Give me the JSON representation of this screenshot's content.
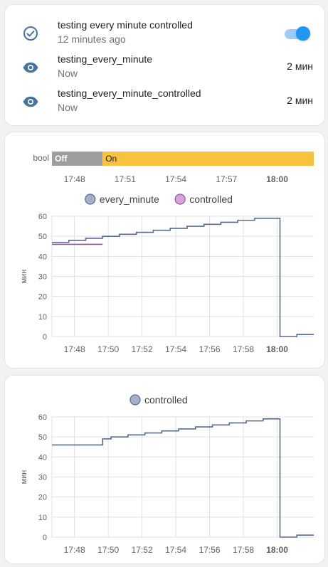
{
  "entities": [
    {
      "name": "testing every minute controlled",
      "secondary": "12 minutes ago",
      "icon": "check-circle-outline-icon",
      "toggle_on": true
    },
    {
      "name": "testing_every_minute",
      "secondary": "Now",
      "icon": "eye-icon",
      "value": "2 мин"
    },
    {
      "name": "testing_every_minute_controlled",
      "secondary": "Now",
      "icon": "eye-icon",
      "value": "2 мин"
    }
  ],
  "timeline": {
    "label": "bool",
    "segments": [
      {
        "label": "Off",
        "start": "17:46:20",
        "end": "17:49:40",
        "color": "#9e9e9e"
      },
      {
        "label": "On",
        "start": "17:49:40",
        "end": "18:02:10",
        "color": "#f9c23c"
      }
    ],
    "ticks": [
      "17:48",
      "17:51",
      "17:54",
      "17:57",
      "18:00"
    ],
    "bold_tick": "18:00"
  },
  "colors": {
    "every_minute": "#5a6a8f",
    "controlled": "#9e4ba8",
    "accent": "#2196f3",
    "icon": "#44739e"
  },
  "chart_data": [
    {
      "type": "line",
      "step": true,
      "ylabel": "мин",
      "ylim": [
        0,
        60
      ],
      "yticks": [
        0,
        10,
        20,
        30,
        40,
        50,
        60
      ],
      "xrange": [
        "17:46:40",
        "18:02:10"
      ],
      "xticks": [
        "17:48",
        "17:50",
        "17:52",
        "17:54",
        "17:56",
        "17:58",
        "18:00"
      ],
      "bold_tick": "18:00",
      "legend": [
        {
          "name": "every_minute",
          "color": "#5a6a8f",
          "fill": "#a4b0c7"
        },
        {
          "name": "controlled",
          "color": "#9e4ba8",
          "fill": "#d5a6d8"
        }
      ],
      "series": [
        {
          "name": "every_minute",
          "color": "#5a6a8f",
          "points": [
            [
              "17:46:40",
              47
            ],
            [
              "17:47:40",
              48
            ],
            [
              "17:48:40",
              49
            ],
            [
              "17:49:40",
              50
            ],
            [
              "17:50:40",
              51
            ],
            [
              "17:51:40",
              52
            ],
            [
              "17:52:40",
              53
            ],
            [
              "17:53:40",
              54
            ],
            [
              "17:54:40",
              55
            ],
            [
              "17:55:40",
              56
            ],
            [
              "17:56:40",
              57
            ],
            [
              "17:57:40",
              58
            ],
            [
              "17:58:40",
              59
            ],
            [
              "18:00:10",
              0
            ],
            [
              "18:01:10",
              1
            ],
            [
              "18:02:10",
              1
            ]
          ]
        },
        {
          "name": "controlled",
          "color": "#9e4ba8",
          "points": [
            [
              "17:46:40",
              46
            ],
            [
              "17:49:40",
              46
            ]
          ]
        }
      ]
    },
    {
      "type": "line",
      "step": true,
      "ylabel": "мин",
      "ylim": [
        0,
        60
      ],
      "yticks": [
        0,
        10,
        20,
        30,
        40,
        50,
        60
      ],
      "xrange": [
        "17:46:40",
        "18:02:10"
      ],
      "xticks": [
        "17:48",
        "17:50",
        "17:52",
        "17:54",
        "17:56",
        "17:58",
        "18:00"
      ],
      "bold_tick": "18:00",
      "legend": [
        {
          "name": "controlled",
          "color": "#5a6a8f",
          "fill": "#a4b0c7"
        }
      ],
      "series": [
        {
          "name": "controlled",
          "color": "#5a6a8f",
          "points": [
            [
              "17:46:40",
              46
            ],
            [
              "17:49:40",
              49
            ],
            [
              "17:50:10",
              50
            ],
            [
              "17:51:10",
              51
            ],
            [
              "17:52:10",
              52
            ],
            [
              "17:53:10",
              53
            ],
            [
              "17:54:10",
              54
            ],
            [
              "17:55:10",
              55
            ],
            [
              "17:56:10",
              56
            ],
            [
              "17:57:10",
              57
            ],
            [
              "17:58:10",
              58
            ],
            [
              "17:59:10",
              59
            ],
            [
              "18:00:10",
              0
            ],
            [
              "18:01:10",
              1
            ],
            [
              "18:02:10",
              1
            ]
          ]
        }
      ]
    }
  ]
}
